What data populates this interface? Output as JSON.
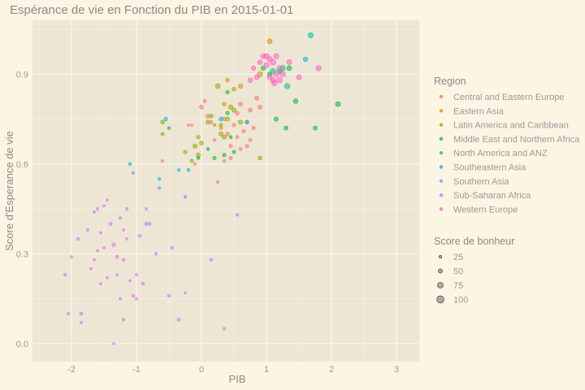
{
  "chart_data": {
    "type": "scatter",
    "title": "Espérance de vie en Fonction du PIB en 2015-01-01",
    "xlabel": "PIB",
    "ylabel": "Score d'Esperance de vie",
    "xlim": [
      -2.6,
      3.35
    ],
    "ylim": [
      -0.06,
      1.08
    ],
    "x_ticks": [
      -2,
      -1,
      0,
      1,
      2,
      3
    ],
    "y_ticks": [
      0.0,
      0.3,
      0.6,
      0.9
    ],
    "y_tick_labels": [
      "0.0",
      "0.3",
      "0.6",
      "0.9"
    ],
    "grid": true,
    "legend_position": "right",
    "color_legend": {
      "title": "Region",
      "entries": [
        {
          "name": "Central and Eastern Europe",
          "color": "#f8766d"
        },
        {
          "name": "Eastern Asia",
          "color": "#d39200"
        },
        {
          "name": "Latin America and Caribbean",
          "color": "#93aa00"
        },
        {
          "name": "Middle East and Northern Africa",
          "color": "#00ba38"
        },
        {
          "name": "North America and ANZ",
          "color": "#00c19f"
        },
        {
          "name": "Southeastern Asia",
          "color": "#00b9e3"
        },
        {
          "name": "Southern Asia",
          "color": "#619cff"
        },
        {
          "name": "Sub-Saharan Africa",
          "color": "#db72fb"
        },
        {
          "name": "Western Europe",
          "color": "#ff61c3"
        }
      ]
    },
    "size_legend": {
      "title": "Score de bonheur",
      "entries": [
        {
          "label": "25",
          "value": 25
        },
        {
          "label": "50",
          "value": 50
        },
        {
          "label": "75",
          "value": 75
        },
        {
          "label": "100",
          "value": 100
        }
      ]
    },
    "series": [
      {
        "region": "Central and Eastern Europe",
        "points": [
          [
            0.0,
            0.79,
            45
          ],
          [
            0.05,
            0.81,
            40
          ],
          [
            0.1,
            0.76,
            48
          ],
          [
            0.15,
            0.74,
            38
          ],
          [
            0.3,
            0.72,
            35
          ],
          [
            0.35,
            0.75,
            40
          ],
          [
            0.4,
            0.7,
            42
          ],
          [
            0.45,
            0.66,
            38
          ],
          [
            0.5,
            0.73,
            40
          ],
          [
            0.55,
            0.77,
            45
          ],
          [
            0.6,
            0.8,
            48
          ],
          [
            0.65,
            0.71,
            42
          ],
          [
            0.7,
            0.74,
            45
          ],
          [
            0.75,
            0.78,
            50
          ],
          [
            0.8,
            0.72,
            40
          ],
          [
            0.85,
            0.82,
            50
          ],
          [
            0.55,
            0.69,
            35
          ],
          [
            0.45,
            0.62,
            38
          ],
          [
            0.2,
            0.68,
            30
          ],
          [
            0.25,
            0.54,
            28
          ],
          [
            -0.1,
            0.6,
            20
          ],
          [
            -0.2,
            0.73,
            18
          ],
          [
            -0.15,
            0.73,
            18
          ],
          [
            0.35,
            0.61,
            30
          ],
          [
            0.75,
            0.68,
            40
          ],
          [
            0.9,
            0.79,
            50
          ],
          [
            0.7,
            0.66,
            40
          ],
          [
            -0.6,
            0.61,
            22
          ],
          [
            0.6,
            0.65,
            30
          ]
        ]
      },
      {
        "region": "Eastern Asia",
        "points": [
          [
            1.05,
            1.01,
            60
          ],
          [
            0.9,
            0.9,
            65
          ],
          [
            0.6,
            0.86,
            55
          ],
          [
            0.35,
            0.8,
            45
          ],
          [
            0.2,
            0.73,
            30
          ],
          [
            0.4,
            0.88,
            40
          ]
        ]
      },
      {
        "region": "Latin America and Caribbean",
        "points": [
          [
            0.25,
            0.86,
            60
          ],
          [
            0.3,
            0.7,
            55
          ],
          [
            0.35,
            0.69,
            52
          ],
          [
            0.45,
            0.79,
            55
          ],
          [
            0.5,
            0.78,
            55
          ],
          [
            0.0,
            0.67,
            45
          ],
          [
            -0.1,
            0.66,
            50
          ],
          [
            -0.05,
            0.63,
            50
          ],
          [
            0.1,
            0.74,
            50
          ],
          [
            0.4,
            0.75,
            50
          ],
          [
            0.6,
            0.74,
            52
          ],
          [
            -0.15,
            0.61,
            40
          ],
          [
            -0.6,
            0.7,
            40
          ],
          [
            -0.6,
            0.74,
            45
          ],
          [
            -0.25,
            0.64,
            40
          ],
          [
            0.15,
            0.76,
            45
          ],
          [
            0.5,
            0.85,
            45
          ],
          [
            0.9,
            0.62,
            45
          ],
          [
            0.3,
            0.73,
            40
          ],
          [
            -0.05,
            0.69,
            42
          ]
        ]
      },
      {
        "region": "Middle East and Northern Africa",
        "points": [
          [
            1.2,
            0.91,
            60
          ],
          [
            1.35,
            0.92,
            58
          ],
          [
            1.75,
            0.72,
            50
          ],
          [
            2.1,
            0.8,
            62
          ],
          [
            1.45,
            0.81,
            58
          ],
          [
            1.3,
            0.72,
            48
          ],
          [
            1.15,
            0.75,
            50
          ],
          [
            0.95,
            0.92,
            55
          ],
          [
            0.4,
            0.84,
            38
          ],
          [
            0.35,
            0.63,
            40
          ],
          [
            0.5,
            0.64,
            35
          ],
          [
            0.2,
            0.62,
            38
          ],
          [
            -0.05,
            0.62,
            30
          ],
          [
            0.1,
            0.65,
            30
          ],
          [
            1.05,
            0.9,
            55
          ],
          [
            0.4,
            0.77,
            40
          ],
          [
            0.45,
            0.69,
            30
          ],
          [
            -0.5,
            0.72,
            30
          ]
        ]
      },
      {
        "region": "North America and ANZ",
        "points": [
          [
            1.68,
            1.03,
            68
          ],
          [
            1.32,
            0.86,
            70
          ],
          [
            1.25,
            0.92,
            70
          ],
          [
            1.1,
            0.91,
            70
          ]
        ]
      },
      {
        "region": "Southeastern Asia",
        "points": [
          [
            -0.55,
            0.75,
            40
          ],
          [
            0.3,
            0.75,
            45
          ],
          [
            0.7,
            0.74,
            40
          ],
          [
            -0.65,
            0.55,
            30
          ],
          [
            -0.35,
            0.58,
            28
          ],
          [
            -0.2,
            0.58,
            30
          ],
          [
            -1.1,
            0.6,
            30
          ],
          [
            1.6,
            0.95,
            55
          ]
        ]
      },
      {
        "region": "Southern Asia",
        "points": [
          [
            -0.85,
            0.4,
            30
          ],
          [
            -0.65,
            0.52,
            25
          ],
          [
            -0.25,
            0.49,
            28
          ],
          [
            -1.05,
            0.57,
            25
          ],
          [
            -1.15,
            0.45,
            20
          ]
        ]
      },
      {
        "region": "Sub-Saharan Africa",
        "points": [
          [
            -2.1,
            0.23,
            25
          ],
          [
            -2.05,
            0.1,
            20
          ],
          [
            -1.9,
            0.35,
            30
          ],
          [
            -1.85,
            0.1,
            35
          ],
          [
            -1.85,
            0.07,
            25
          ],
          [
            -1.6,
            0.45,
            25
          ],
          [
            -1.5,
            0.46,
            20
          ],
          [
            -1.4,
            0.4,
            35
          ],
          [
            -1.35,
            0.33,
            40
          ],
          [
            -1.3,
            0.29,
            30
          ],
          [
            -1.2,
            0.28,
            25
          ],
          [
            -1.1,
            0.21,
            20
          ],
          [
            -1.05,
            0.16,
            25
          ],
          [
            -0.9,
            0.2,
            30
          ],
          [
            -0.8,
            0.4,
            35
          ],
          [
            -0.7,
            0.3,
            30
          ],
          [
            -0.5,
            0.16,
            30
          ],
          [
            -0.45,
            0.32,
            25
          ],
          [
            -0.25,
            0.17,
            20
          ],
          [
            -0.35,
            0.08,
            35
          ],
          [
            0.15,
            0.28,
            30
          ],
          [
            0.35,
            0.05,
            25
          ],
          [
            0.55,
            0.43,
            25
          ],
          [
            -1.55,
            0.37,
            22
          ],
          [
            -1.65,
            0.28,
            20
          ],
          [
            -1.25,
            0.42,
            25
          ],
          [
            -1.15,
            0.35,
            20
          ],
          [
            -0.95,
            0.36,
            30
          ],
          [
            -1.0,
            0.23,
            20
          ],
          [
            -1.75,
            0.38,
            25
          ],
          [
            -1.7,
            0.25,
            22
          ],
          [
            -1.2,
            0.38,
            20
          ],
          [
            -1.0,
            0.15,
            20
          ],
          [
            -1.25,
            0.15,
            25
          ],
          [
            -1.5,
            0.32,
            22
          ],
          [
            -1.3,
            0.23,
            20
          ],
          [
            -1.45,
            0.22,
            18
          ],
          [
            -1.55,
            0.2,
            18
          ],
          [
            -1.6,
            0.31,
            20
          ],
          [
            -1.35,
            0.0,
            20
          ],
          [
            -1.2,
            0.08,
            30
          ],
          [
            -0.85,
            0.45,
            20
          ],
          [
            -1.65,
            0.44,
            20
          ],
          [
            -2.0,
            0.29,
            20
          ],
          [
            -1.45,
            0.48,
            20
          ]
        ]
      },
      {
        "region": "Western Europe",
        "points": [
          [
            1.0,
            0.96,
            70
          ],
          [
            1.05,
            0.95,
            70
          ],
          [
            1.1,
            0.94,
            72
          ],
          [
            1.15,
            0.96,
            68
          ],
          [
            1.2,
            0.92,
            70
          ],
          [
            1.1,
            0.88,
            68
          ],
          [
            1.05,
            0.89,
            70
          ],
          [
            1.15,
            0.9,
            70
          ],
          [
            1.2,
            0.88,
            72
          ],
          [
            1.25,
            0.9,
            70
          ],
          [
            1.35,
            0.94,
            65
          ],
          [
            1.5,
            0.89,
            65
          ],
          [
            1.8,
            0.92,
            70
          ],
          [
            1.0,
            0.93,
            68
          ],
          [
            0.95,
            0.96,
            65
          ],
          [
            0.85,
            0.89,
            60
          ],
          [
            0.75,
            0.88,
            60
          ],
          [
            1.12,
            0.87,
            72
          ],
          [
            0.9,
            0.94,
            60
          ],
          [
            0.8,
            0.92,
            55
          ]
        ]
      }
    ]
  }
}
